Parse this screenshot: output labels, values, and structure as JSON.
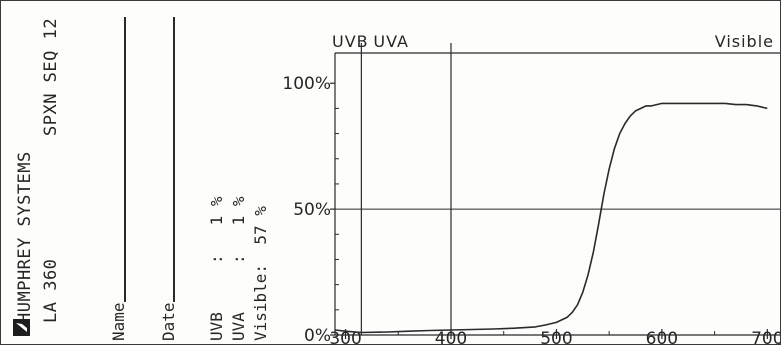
{
  "report": {
    "header_line1": "HUMPHREY SYSTEMS",
    "header_line2": "LA 360",
    "header_code": "SPXN SEQ 12",
    "name_label": "Name",
    "date_label": "Date",
    "summary": [
      {
        "label": "UVB",
        "value": "1",
        "unit": "%"
      },
      {
        "label": "UVA",
        "value": "1",
        "unit": "%"
      },
      {
        "label": "Visible:",
        "value": "57",
        "unit": "%"
      }
    ],
    "summary_lines": [
      "UVB     :   1 %",
      "UVA     :   1 %",
      "Visible:  57 %"
    ]
  },
  "chart_data": {
    "type": "line",
    "title": "",
    "xlabel": "",
    "ylabel": "",
    "xlim": [
      290,
      712
    ],
    "ylim": [
      0,
      112
    ],
    "x_ticks": [
      300,
      400,
      500,
      600,
      700
    ],
    "y_ticks": [
      {
        "value": 0,
        "label": "0%"
      },
      {
        "value": 50,
        "label": "50%"
      },
      {
        "value": 100,
        "label": "100%"
      }
    ],
    "regions": [
      {
        "label": "UVB",
        "from": 290,
        "to": 315
      },
      {
        "label": "UVA",
        "from": 315,
        "to": 400
      },
      {
        "label": "Visible",
        "from": 400,
        "to": 712
      }
    ],
    "reference_line_y": 50,
    "series": [
      {
        "x": [
          290,
          300,
          315,
          340,
          360,
          380,
          400,
          420,
          440,
          460,
          480,
          490,
          500,
          510,
          515,
          520,
          525,
          530,
          535,
          540,
          545,
          550,
          555,
          560,
          565,
          570,
          575,
          580,
          585,
          590,
          600,
          610,
          620,
          630,
          640,
          650,
          660,
          670,
          680,
          690,
          700
        ],
        "y": [
          2,
          1.5,
          1,
          1.2,
          1.5,
          1.8,
          2,
          2.2,
          2.4,
          2.7,
          3.2,
          4,
          5,
          7,
          9,
          12,
          17,
          24,
          33,
          44,
          56,
          66,
          74,
          80,
          84,
          87,
          89,
          90,
          91,
          91,
          92,
          92,
          92,
          92,
          92,
          92,
          92,
          91.5,
          91.5,
          91,
          90
        ]
      }
    ],
    "color": "#2a2a2a"
  }
}
